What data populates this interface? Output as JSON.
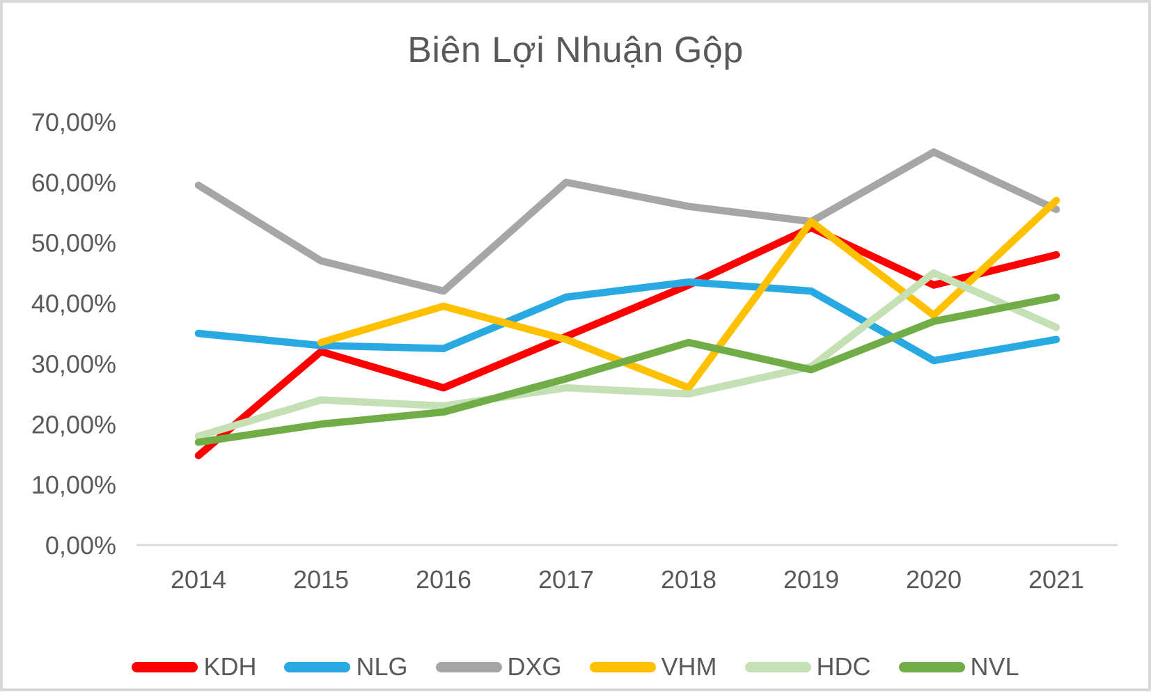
{
  "chart_data": {
    "type": "line",
    "title": "Biên Lợi Nhuận Gộp",
    "categories": [
      "2014",
      "2015",
      "2016",
      "2017",
      "2018",
      "2019",
      "2020",
      "2021"
    ],
    "series": [
      {
        "name": "KDH",
        "color": "#fe0000",
        "values": [
          14.8,
          32,
          26,
          34.5,
          43,
          52.5,
          43,
          48
        ]
      },
      {
        "name": "NLG",
        "color": "#29a9e1",
        "values": [
          35,
          33,
          32.5,
          41,
          43.5,
          42,
          30.5,
          34
        ]
      },
      {
        "name": "DXG",
        "color": "#a6a6a6",
        "values": [
          59.5,
          47,
          42,
          60,
          56,
          53.5,
          65,
          55.5
        ]
      },
      {
        "name": "VHM",
        "color": "#ffc000",
        "values": [
          null,
          33.5,
          39.5,
          34,
          26,
          53.5,
          38,
          57
        ]
      },
      {
        "name": "HDC",
        "color": "#c5e0b4",
        "values": [
          18,
          24,
          23,
          26,
          25,
          29.5,
          45,
          36
        ]
      },
      {
        "name": "NVL",
        "color": "#70ad47",
        "values": [
          17,
          20,
          22,
          27.5,
          33.5,
          29,
          37,
          41
        ]
      }
    ],
    "y_axis": {
      "min": 0,
      "max": 70,
      "step": 10,
      "tick_values": [
        0,
        10,
        20,
        30,
        40,
        50,
        60,
        70
      ],
      "tick_labels": [
        "0,00%",
        "10,00%",
        "20,00%",
        "30,00%",
        "40,00%",
        "50,00%",
        "60,00%",
        "70,00%"
      ]
    },
    "grid": false,
    "legend_position": "bottom",
    "axis_line_color": "#d9d9d9",
    "text_color": "#595959"
  }
}
